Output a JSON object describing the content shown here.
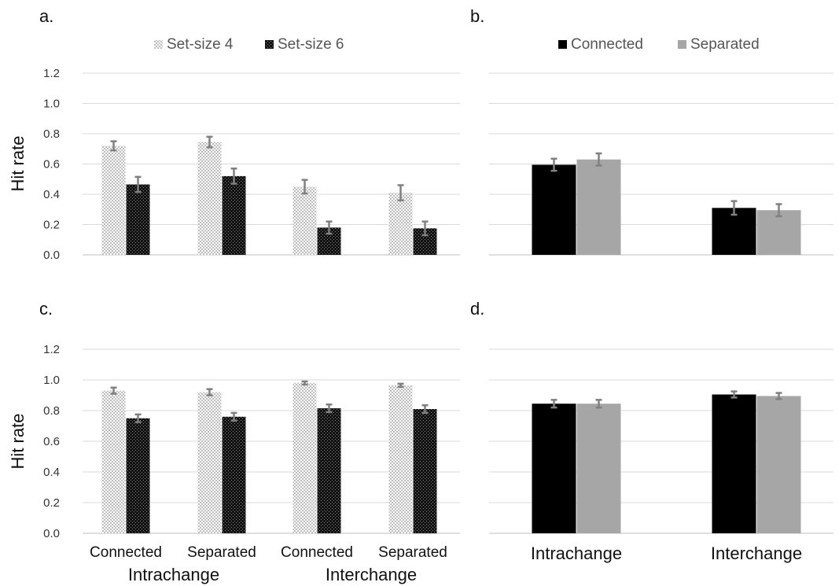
{
  "chart_data": [
    {
      "panel": "a.",
      "type": "bar",
      "ylabel": "Hit rate",
      "ylim": [
        0,
        1.2
      ],
      "yticks": [
        "0.0",
        "0.2",
        "0.4",
        "0.6",
        "0.8",
        "1.0",
        "1.2"
      ],
      "grid": true,
      "legend": "top-center",
      "categories": [
        "Connected",
        "Separated",
        "Connected",
        "Separated"
      ],
      "groups": [
        "Intrachange",
        "Interchange"
      ],
      "series": [
        {
          "name": "Set-size 4",
          "pattern": "light-checker",
          "values": [
            0.72,
            0.745,
            0.45,
            0.41
          ],
          "errors": [
            0.03,
            0.035,
            0.045,
            0.05
          ]
        },
        {
          "name": "Set-size 6",
          "pattern": "dark-checker",
          "values": [
            0.465,
            0.52,
            0.18,
            0.175
          ],
          "errors": [
            0.05,
            0.05,
            0.04,
            0.045
          ]
        }
      ]
    },
    {
      "panel": "b.",
      "type": "bar",
      "ylim": [
        0,
        1.2
      ],
      "grid": true,
      "legend": "top-center",
      "categories": [
        "Intrachange",
        "Interchange"
      ],
      "series": [
        {
          "name": "Connected",
          "color": "#000000",
          "values": [
            0.595,
            0.31
          ],
          "errors": [
            0.04,
            0.045
          ]
        },
        {
          "name": "Separated",
          "color": "#a6a6a6",
          "values": [
            0.63,
            0.295
          ],
          "errors": [
            0.04,
            0.04
          ]
        }
      ]
    },
    {
      "panel": "c.",
      "type": "bar",
      "ylabel": "Hit rate",
      "ylim": [
        0,
        1.2
      ],
      "yticks": [
        "0.0",
        "0.2",
        "0.4",
        "0.6",
        "0.8",
        "1.0",
        "1.2"
      ],
      "grid": true,
      "categories": [
        "Connected",
        "Separated",
        "Connected",
        "Separated"
      ],
      "groups": [
        "Intrachange",
        "Interchange"
      ],
      "series": [
        {
          "name": "Set-size 4",
          "pattern": "light-checker",
          "values": [
            0.93,
            0.92,
            0.98,
            0.965
          ],
          "errors": [
            0.02,
            0.02,
            0.01,
            0.01
          ]
        },
        {
          "name": "Set-size 6",
          "pattern": "dark-checker",
          "values": [
            0.75,
            0.76,
            0.815,
            0.81
          ],
          "errors": [
            0.025,
            0.025,
            0.025,
            0.025
          ]
        }
      ]
    },
    {
      "panel": "d.",
      "type": "bar",
      "ylim": [
        0,
        1.2
      ],
      "grid": true,
      "categories": [
        "Intrachange",
        "Interchange"
      ],
      "series": [
        {
          "name": "Connected",
          "color": "#000000",
          "values": [
            0.845,
            0.905
          ],
          "errors": [
            0.025,
            0.02
          ]
        },
        {
          "name": "Separated",
          "color": "#a6a6a6",
          "values": [
            0.845,
            0.895
          ],
          "errors": [
            0.025,
            0.02
          ]
        }
      ]
    }
  ],
  "colors": {
    "grid": "#d9d9d9",
    "error_bar": "#808080",
    "light_pattern": "#c8c8c8",
    "dark_pattern": "#111111"
  }
}
